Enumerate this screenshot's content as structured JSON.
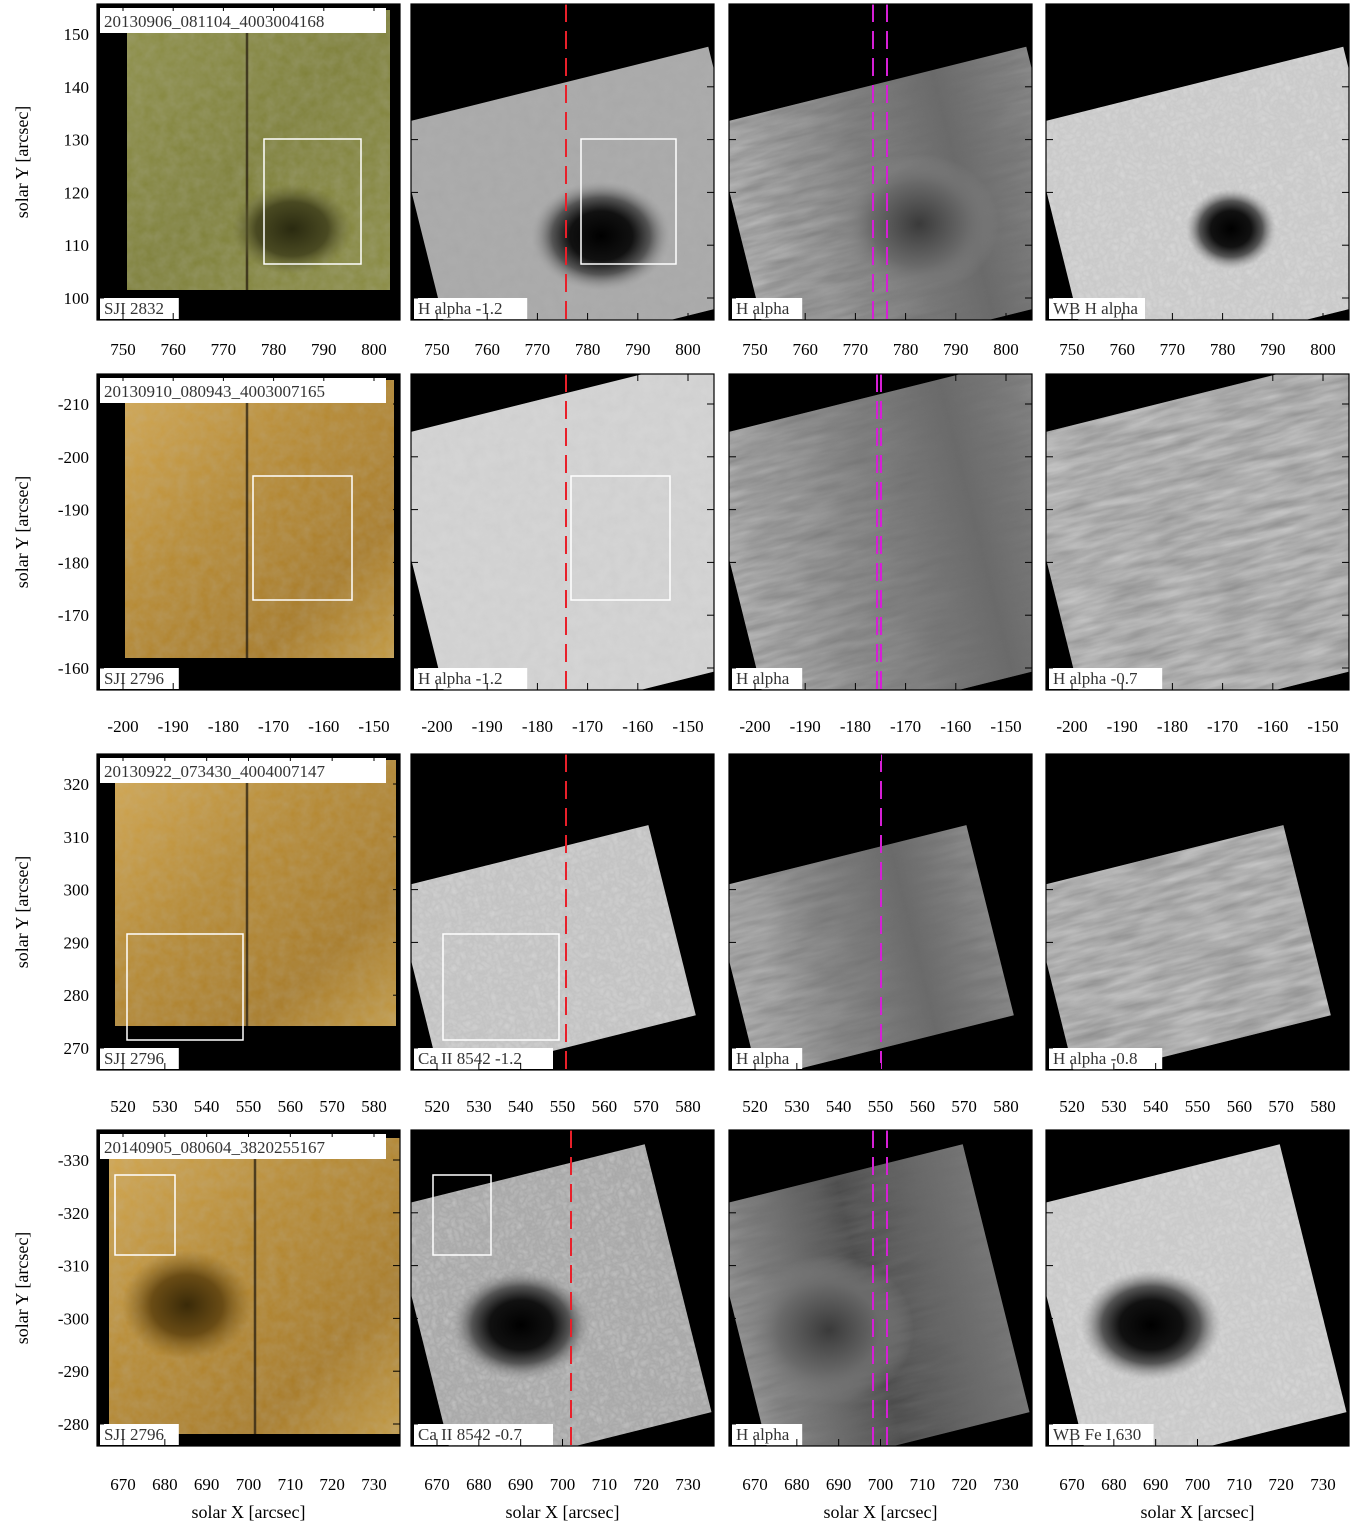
{
  "figure": {
    "ylabel": "solar Y [arcsec]",
    "xlabel": "solar X [arcsec]",
    "rows": [
      {
        "obs_id": "20130906_081104_4003004168",
        "x_ticks": [
          "750",
          "760",
          "770",
          "780",
          "790",
          "800"
        ],
        "y_ticks": [
          "100",
          "110",
          "120",
          "130",
          "140",
          "150"
        ],
        "panels": [
          {
            "label": "SJI 2832",
            "kind": "sji-olive",
            "marker": "none",
            "box": true
          },
          {
            "label": "H alpha -1.2",
            "kind": "sst-wing-spot",
            "marker": "red-single",
            "box": true
          },
          {
            "label": "H alpha",
            "kind": "sst-core",
            "marker": "magenta-double",
            "box": false
          },
          {
            "label": "WB H alpha",
            "kind": "sst-wb",
            "marker": "none",
            "box": false
          }
        ]
      },
      {
        "obs_id": "20130910_080943_4003007165",
        "x_ticks": [
          "-200",
          "-190",
          "-180",
          "-170",
          "-160",
          "-150"
        ],
        "y_ticks": [
          "-160",
          "-170",
          "-180",
          "-190",
          "-200",
          "-210"
        ],
        "panels": [
          {
            "label": "SJI 2796",
            "kind": "sji-gold",
            "marker": "none",
            "box": true
          },
          {
            "label": "H alpha -1.2",
            "kind": "sst-wing-quiet",
            "marker": "red-single",
            "box": true
          },
          {
            "label": "H alpha",
            "kind": "sst-core",
            "marker": "magenta-double",
            "box": false
          },
          {
            "label": "H alpha -0.7",
            "kind": "sst-wing-fibril",
            "marker": "none",
            "box": false
          }
        ]
      },
      {
        "obs_id": "20130922_073430_4004007147",
        "x_ticks": [
          "520",
          "530",
          "540",
          "550",
          "560",
          "570",
          "580"
        ],
        "y_ticks": [
          "270",
          "280",
          "290",
          "300",
          "310",
          "320"
        ],
        "panels": [
          {
            "label": "SJI 2796",
            "kind": "sji-gold",
            "marker": "none",
            "box": true
          },
          {
            "label": "Ca II 8542 -1.2",
            "kind": "sst-granule",
            "marker": "red-single",
            "box": true
          },
          {
            "label": "H alpha",
            "kind": "sst-core",
            "marker": "magenta-single",
            "box": false
          },
          {
            "label": "H alpha -0.8",
            "kind": "sst-wing-fibril",
            "marker": "none",
            "box": false
          }
        ]
      },
      {
        "obs_id": "20140905_080604_3820255167",
        "x_ticks": [
          "670",
          "680",
          "690",
          "700",
          "710",
          "720",
          "730"
        ],
        "y_ticks": [
          "-280",
          "-290",
          "-300",
          "-310",
          "-320",
          "-330"
        ],
        "panels": [
          {
            "label": "SJI 2796",
            "kind": "sji-gold-spot",
            "marker": "none",
            "box": true
          },
          {
            "label": "Ca II 8542 -0.7",
            "kind": "sst-spot-big",
            "marker": "red-single",
            "box": true
          },
          {
            "label": "H alpha",
            "kind": "sst-core-dark",
            "marker": "magenta-double",
            "box": false
          },
          {
            "label": "WB Fe I 630",
            "kind": "sst-wb-spot",
            "marker": "none",
            "box": false
          }
        ]
      }
    ],
    "colors": {
      "red_marker": "#e8202a",
      "magenta_marker": "#d61fd6",
      "box": "#ffffff",
      "sji_olive": "#8a8a3c",
      "sji_gold": "#b8892e"
    }
  }
}
